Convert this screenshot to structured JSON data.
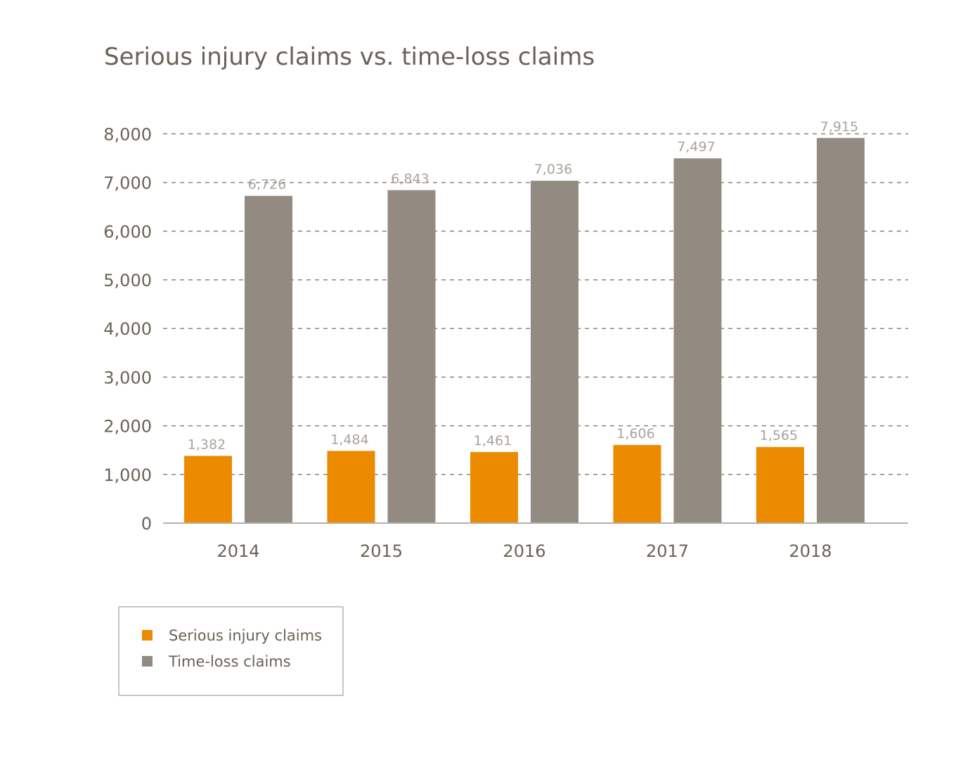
{
  "chart_data": {
    "type": "bar",
    "title": "Serious injury claims vs. time-loss claims",
    "xlabel": "",
    "ylabel": "",
    "categories": [
      "2014",
      "2015",
      "2016",
      "2017",
      "2018"
    ],
    "series": [
      {
        "name": "Serious injury claims",
        "color": "#ed8b00",
        "values": [
          1382,
          1484,
          1461,
          1606,
          1565
        ],
        "labels": [
          "1,382",
          "1,484",
          "1,461",
          "1,606",
          "1,565"
        ]
      },
      {
        "name": "Time-loss claims",
        "color": "#938a81",
        "values": [
          6726,
          6843,
          7036,
          7497,
          7915
        ],
        "labels": [
          "6,726",
          "6,843",
          "7,036",
          "7,497",
          "7,915"
        ]
      }
    ],
    "ylim": [
      0,
      8000
    ],
    "yticks": [
      0,
      1000,
      2000,
      3000,
      4000,
      5000,
      6000,
      7000,
      8000
    ],
    "ytick_labels": [
      "0",
      "1,000",
      "2,000",
      "3,000",
      "4,000",
      "5,000",
      "6,000",
      "7,000",
      "8,000"
    ],
    "grid": true,
    "legend_position": "bottom-left"
  }
}
